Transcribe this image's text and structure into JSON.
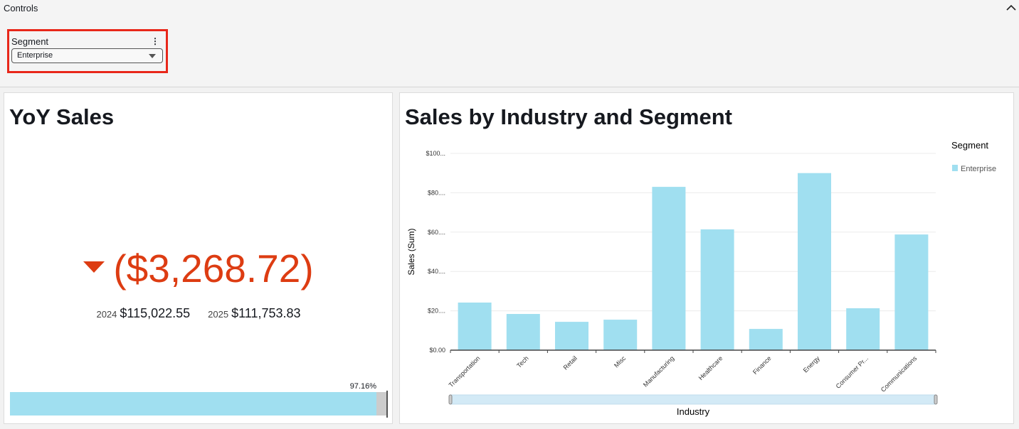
{
  "controls": {
    "title": "Controls",
    "segment_label": "Segment",
    "segment_value": "Enterprise"
  },
  "kpi_card": {
    "title": "YoY Sales",
    "delta": "($3,268.72)",
    "prev_year": "2024",
    "prev_value": "$115,022.55",
    "curr_year": "2025",
    "curr_value": "$111,753.83",
    "progress_label": "97.16%",
    "progress": 97.16
  },
  "chart_card": {
    "title": "Sales by Industry and Segment"
  },
  "colors": {
    "bar": "#a0dff0",
    "negative": "#dd3c12",
    "highlight": "#e8271a"
  },
  "chart_data": {
    "type": "bar",
    "title": "Sales by Industry and Segment",
    "xlabel": "Industry",
    "ylabel": "Sales (Sum)",
    "categories": [
      "Transportation",
      "Tech",
      "Retail",
      "Misc",
      "Manufacturing",
      "Healthcare",
      "Finance",
      "Energy",
      "Consumer Pr...",
      "Communications"
    ],
    "series": [
      {
        "name": "Enterprise",
        "values": [
          24.2,
          18.4,
          14.4,
          15.5,
          83.0,
          61.4,
          10.8,
          90.0,
          21.3,
          58.8
        ]
      }
    ],
    "ylim": [
      0,
      100
    ],
    "yticks": [
      0,
      20,
      40,
      60,
      80,
      100
    ],
    "ytick_labels": [
      "$0.00",
      "$20....",
      "$40....",
      "$60....",
      "$80....",
      "$100..."
    ],
    "legend_title": "Segment",
    "legend_position": "right",
    "grid": true
  }
}
